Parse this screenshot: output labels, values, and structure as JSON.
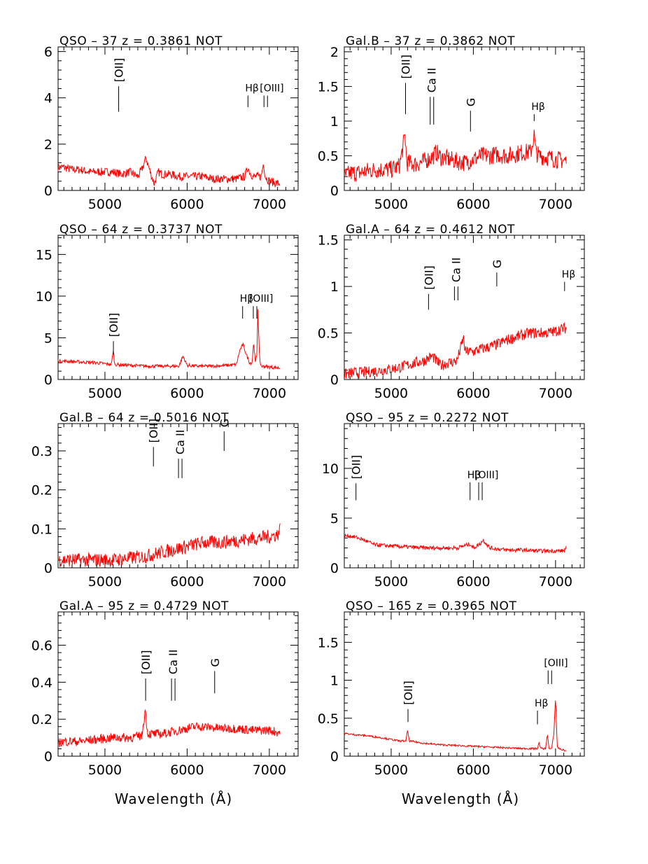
{
  "figure": {
    "xlabel_left": "Wavelength (Å)",
    "xlabel_right": "Wavelength (Å)",
    "spectrum_color": "#ff0000"
  },
  "chart_data": [
    {
      "type": "line",
      "title": "QSO –  37   z = 0.3861 NOT",
      "xlim": [
        4430,
        7350
      ],
      "ylim": [
        0,
        6.2
      ],
      "xticks": [
        5000,
        6000,
        7000
      ],
      "yticks": [
        0,
        2,
        4,
        6
      ],
      "yticklabels": [
        "0",
        "2",
        "4",
        "6"
      ],
      "series": [
        {
          "x": [
            4430,
            4500,
            4600,
            4700,
            4800,
            4900,
            5000,
            5100,
            5200,
            5300,
            5400,
            5450,
            5500,
            5550,
            5600,
            5650,
            5700,
            5800,
            5900,
            6000,
            6100,
            6200,
            6300,
            6400,
            6500,
            6600,
            6700,
            6740,
            6760,
            6800,
            6900,
            6930,
            6950,
            7000,
            7100,
            7130
          ],
          "y": [
            1.0,
            1.0,
            0.9,
            0.9,
            0.8,
            0.8,
            0.8,
            0.8,
            0.7,
            0.8,
            0.6,
            0.9,
            1.4,
            0.8,
            0.3,
            0.8,
            0.7,
            0.7,
            0.6,
            0.6,
            0.6,
            0.6,
            0.5,
            0.5,
            0.5,
            0.5,
            0.6,
            1.0,
            0.8,
            0.6,
            0.6,
            1.2,
            0.6,
            0.4,
            0.3,
            0.3
          ],
          "noise": 0.18
        }
      ],
      "lines": [
        {
          "label": "[OII]",
          "x": 5167,
          "y0": 3.4,
          "y1": 4.5,
          "orient": "v"
        },
        {
          "label": "Hβ",
          "x": 6740,
          "y0": 3.6,
          "y1": 4.1,
          "orient": "h"
        },
        {
          "label": "[OIII]",
          "x": 6935,
          "y0": 3.6,
          "y1": 4.1,
          "orient": "h",
          "double": true,
          "dx": 70
        }
      ]
    },
    {
      "type": "line",
      "title": "Gal.B –  37   z = 0.3862 NOT",
      "xlim": [
        4430,
        7350
      ],
      "ylim": [
        0,
        2.07
      ],
      "xticks": [
        5000,
        6000,
        7000
      ],
      "yticks": [
        0,
        0.5,
        1,
        1.5,
        2
      ],
      "yticklabels": [
        "0",
        "0.5",
        "1",
        "1.5",
        "2"
      ],
      "series": [
        {
          "x": [
            4430,
            4500,
            4600,
            4700,
            4800,
            4900,
            5000,
            5100,
            5170,
            5190,
            5300,
            5400,
            5500,
            5550,
            5600,
            5700,
            5800,
            5900,
            6000,
            6100,
            6200,
            6300,
            6400,
            6500,
            6600,
            6700,
            6740,
            6760,
            6800,
            6900,
            7000,
            7100,
            7130
          ],
          "y": [
            0.2,
            0.25,
            0.25,
            0.28,
            0.3,
            0.3,
            0.3,
            0.35,
            0.8,
            0.4,
            0.38,
            0.42,
            0.48,
            0.55,
            0.48,
            0.45,
            0.42,
            0.4,
            0.45,
            0.5,
            0.5,
            0.52,
            0.5,
            0.52,
            0.55,
            0.55,
            0.8,
            0.55,
            0.5,
            0.48,
            0.45,
            0.43,
            0.43
          ],
          "noise": 0.13
        }
      ],
      "lines": [
        {
          "label": "[OII]",
          "x": 5175,
          "y0": 1.1,
          "y1": 1.55,
          "orient": "v"
        },
        {
          "label": "Ca II",
          "x": 5475,
          "y0": 0.95,
          "y1": 1.35,
          "orient": "v",
          "double": true,
          "dx": 35
        },
        {
          "label": "G",
          "x": 5965,
          "y0": 0.85,
          "y1": 1.15,
          "orient": "v"
        },
        {
          "label": "Hβ",
          "x": 6740,
          "y0": 1.0,
          "y1": 1.1,
          "orient": "h"
        }
      ]
    },
    {
      "type": "line",
      "title": "QSO –  64   z = 0.3737 NOT",
      "xlim": [
        4430,
        7350
      ],
      "ylim": [
        0,
        17.3
      ],
      "xticks": [
        5000,
        6000,
        7000
      ],
      "yticks": [
        0,
        5,
        10,
        15
      ],
      "yticklabels": [
        "0",
        "5",
        "10",
        "15"
      ],
      "series": [
        {
          "x": [
            4430,
            4500,
            4700,
            4900,
            5080,
            5100,
            5120,
            5300,
            5500,
            5700,
            5900,
            5950,
            6000,
            6100,
            6300,
            6500,
            6600,
            6640,
            6680,
            6720,
            6760,
            6790,
            6810,
            6830,
            6850,
            6860,
            6880,
            6900,
            7000,
            7100,
            7130
          ],
          "y": [
            2.2,
            2.2,
            2.1,
            2.0,
            1.8,
            3.5,
            1.8,
            1.7,
            1.6,
            1.6,
            1.6,
            2.8,
            1.7,
            1.6,
            1.6,
            1.7,
            1.8,
            3.5,
            4.2,
            3.0,
            2.0,
            2.0,
            4.5,
            2.0,
            3.0,
            8.5,
            2.5,
            1.6,
            1.5,
            1.4,
            1.4
          ],
          "noise": 0.2
        }
      ],
      "lines": [
        {
          "label": "[OII]",
          "x": 5103,
          "y0": 3.0,
          "y1": 4.6,
          "orient": "v"
        },
        {
          "label": "Hβ",
          "x": 6675,
          "y0": 7.3,
          "y1": 8.8,
          "orient": "h"
        },
        {
          "label": "[OIII]",
          "x": 6805,
          "y0": 7.3,
          "y1": 8.8,
          "orient": "h",
          "double": true,
          "dx": 65
        }
      ]
    },
    {
      "type": "line",
      "title": "Gal.A –  64   z = 0.4612 NOT",
      "xlim": [
        4430,
        7350
      ],
      "ylim": [
        0,
        1.55
      ],
      "xticks": [
        5000,
        6000,
        7000
      ],
      "yticks": [
        0,
        0.5,
        1,
        1.5
      ],
      "yticklabels": [
        "0",
        "0.5",
        "1",
        "1.5"
      ],
      "series": [
        {
          "x": [
            4430,
            4500,
            4700,
            4900,
            5100,
            5300,
            5400,
            5500,
            5600,
            5700,
            5800,
            5850,
            5880,
            5900,
            6000,
            6100,
            6200,
            6300,
            6400,
            6500,
            6600,
            6700,
            6800,
            6900,
            7000,
            7100,
            7130
          ],
          "y": [
            0.05,
            0.07,
            0.08,
            0.1,
            0.13,
            0.18,
            0.2,
            0.25,
            0.15,
            0.18,
            0.2,
            0.35,
            0.45,
            0.3,
            0.3,
            0.33,
            0.35,
            0.38,
            0.42,
            0.45,
            0.48,
            0.5,
            0.5,
            0.5,
            0.52,
            0.55,
            0.55
          ],
          "noise": 0.06
        }
      ],
      "lines": [
        {
          "label": "[OII]",
          "x": 5455,
          "y0": 0.75,
          "y1": 0.92,
          "orient": "v"
        },
        {
          "label": "Ca II",
          "x": 5770,
          "y0": 0.85,
          "y1": 1.0,
          "orient": "v",
          "double": true,
          "dx": 35
        },
        {
          "label": "G",
          "x": 6285,
          "y0": 1.0,
          "y1": 1.15,
          "orient": "v"
        },
        {
          "label": "Hβ",
          "x": 7110,
          "y0": 0.95,
          "y1": 1.05,
          "orient": "h"
        }
      ]
    },
    {
      "type": "line",
      "title": "Gal.B –  64   z = 0.5016 NOT",
      "xlim": [
        4430,
        7350
      ],
      "ylim": [
        0,
        0.37
      ],
      "xticks": [
        5000,
        6000,
        7000
      ],
      "yticks": [
        0,
        0.1,
        0.2,
        0.3
      ],
      "yticklabels": [
        "0",
        "0.1",
        "0.2",
        "0.3"
      ],
      "series": [
        {
          "x": [
            4430,
            4500,
            4700,
            4900,
            5100,
            5300,
            5500,
            5600,
            5700,
            5800,
            5900,
            6000,
            6100,
            6200,
            6400,
            6600,
            6800,
            7000,
            7100,
            7130
          ],
          "y": [
            0.02,
            0.02,
            0.02,
            0.02,
            0.02,
            0.025,
            0.03,
            0.035,
            0.04,
            0.045,
            0.05,
            0.055,
            0.06,
            0.065,
            0.065,
            0.07,
            0.075,
            0.08,
            0.085,
            0.1
          ],
          "noise": 0.018
        }
      ],
      "lines": [
        {
          "label": "[OII]",
          "x": 5590,
          "y0": 0.26,
          "y1": 0.31,
          "orient": "v"
        },
        {
          "label": "Ca II",
          "x": 5895,
          "y0": 0.23,
          "y1": 0.28,
          "orient": "v",
          "double": true,
          "dx": 35
        },
        {
          "label": "G",
          "x": 6450,
          "y0": 0.3,
          "y1": 0.35,
          "orient": "v"
        }
      ]
    },
    {
      "type": "line",
      "title": "QSO –  95   z = 0.2272 NOT",
      "xlim": [
        4430,
        7350
      ],
      "ylim": [
        0,
        14.5
      ],
      "xticks": [
        5000,
        6000,
        7000
      ],
      "yticks": [
        0,
        5,
        10
      ],
      "yticklabels": [
        "0",
        "5",
        "10"
      ],
      "series": [
        {
          "x": [
            4430,
            4500,
            4600,
            4700,
            4800,
            5000,
            5200,
            5400,
            5600,
            5800,
            5960,
            6000,
            6080,
            6120,
            6200,
            6400,
            6600,
            6800,
            7000,
            7100,
            7130
          ],
          "y": [
            3.2,
            3.2,
            3.0,
            2.7,
            2.3,
            2.2,
            2.1,
            2.0,
            2.0,
            2.0,
            2.4,
            2.0,
            2.4,
            2.8,
            2.0,
            1.8,
            1.8,
            1.7,
            1.7,
            1.7,
            2.0
          ],
          "noise": 0.2
        }
      ],
      "lines": [
        {
          "label": "[OII]",
          "x": 4572,
          "y0": 6.8,
          "y1": 8.5,
          "orient": "v"
        },
        {
          "label": "Hβ",
          "x": 5960,
          "y0": 6.8,
          "y1": 8.6,
          "orient": "h"
        },
        {
          "label": "[OIII]",
          "x": 6065,
          "y0": 6.8,
          "y1": 8.6,
          "orient": "h",
          "double": true,
          "dx": 55
        }
      ]
    },
    {
      "type": "line",
      "title": "Gal.A –  95   z = 0.4729 NOT",
      "xlim": [
        4430,
        7350
      ],
      "ylim": [
        0,
        0.78
      ],
      "xticks": [
        5000,
        6000,
        7000
      ],
      "yticks": [
        0,
        0.2,
        0.4,
        0.6
      ],
      "yticklabels": [
        "0",
        "0.2",
        "0.4",
        "0.6"
      ],
      "series": [
        {
          "x": [
            4430,
            4500,
            4700,
            4900,
            5100,
            5300,
            5450,
            5490,
            5520,
            5600,
            5700,
            5800,
            5900,
            6000,
            6100,
            6200,
            6400,
            6600,
            6800,
            7000,
            7100,
            7130
          ],
          "y": [
            0.07,
            0.08,
            0.08,
            0.09,
            0.1,
            0.1,
            0.11,
            0.25,
            0.12,
            0.12,
            0.12,
            0.13,
            0.14,
            0.15,
            0.16,
            0.16,
            0.15,
            0.15,
            0.14,
            0.14,
            0.13,
            0.13
          ],
          "noise": 0.025
        }
      ],
      "lines": [
        {
          "label": "[OII]",
          "x": 5495,
          "y0": 0.3,
          "y1": 0.42,
          "orient": "v"
        },
        {
          "label": "Ca II",
          "x": 5810,
          "y0": 0.3,
          "y1": 0.42,
          "orient": "v",
          "double": true,
          "dx": 35
        },
        {
          "label": "G",
          "x": 6335,
          "y0": 0.34,
          "y1": 0.46,
          "orient": "v"
        }
      ]
    },
    {
      "type": "line",
      "title": "QSO –  165   z = 0.3965 NOT",
      "xlim": [
        4430,
        7350
      ],
      "ylim": [
        0,
        1.9
      ],
      "xticks": [
        5000,
        6000,
        7000
      ],
      "yticks": [
        0,
        0.5,
        1,
        1.5
      ],
      "yticklabels": [
        "0",
        "0.5",
        "1",
        "1.5"
      ],
      "series": [
        {
          "x": [
            4430,
            4500,
            4700,
            4900,
            5100,
            5180,
            5200,
            5220,
            5400,
            5600,
            5800,
            6000,
            6200,
            6400,
            6600,
            6780,
            6800,
            6820,
            6880,
            6900,
            6920,
            6950,
            6980,
            7000,
            7020,
            7060,
            7100,
            7130
          ],
          "y": [
            0.3,
            0.29,
            0.27,
            0.24,
            0.2,
            0.2,
            0.35,
            0.2,
            0.17,
            0.15,
            0.14,
            0.13,
            0.12,
            0.11,
            0.1,
            0.1,
            0.18,
            0.1,
            0.1,
            0.3,
            0.1,
            0.09,
            0.3,
            0.78,
            0.12,
            0.09,
            0.08,
            0.07
          ],
          "noise": 0.012
        }
      ],
      "lines": [
        {
          "label": "[OII]",
          "x": 5205,
          "y0": 0.45,
          "y1": 0.62,
          "orient": "v"
        },
        {
          "label": "Hβ",
          "x": 6780,
          "y0": 0.42,
          "y1": 0.6,
          "orient": "h"
        },
        {
          "label": "[OIII]",
          "x": 6910,
          "y0": 0.95,
          "y1": 1.13,
          "orient": "h",
          "double": true,
          "dx": 55
        }
      ]
    }
  ]
}
